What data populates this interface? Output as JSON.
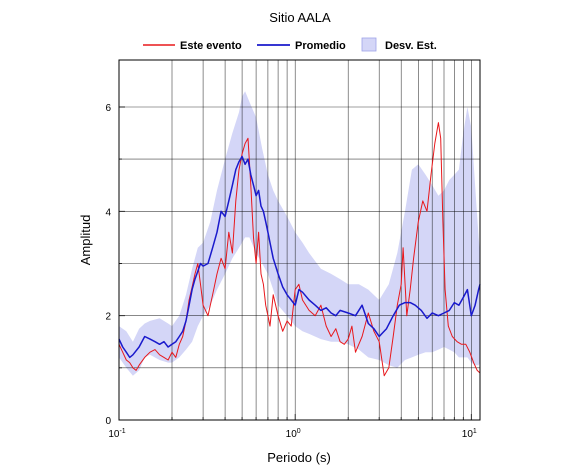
{
  "chart_data": {
    "type": "line",
    "title": "Sitio AALA",
    "xlabel": "Periodo (s)",
    "ylabel": "Amplitud",
    "x_scale": "log",
    "xlim": [
      0.1,
      11.2
    ],
    "ylim": [
      0,
      6.9
    ],
    "grid": "vertical at log decades and minor ticks; horizontal at every 1",
    "legend_position": "top",
    "x_ticks": [
      {
        "base": "10",
        "exp": "-1",
        "value": 0.1
      },
      {
        "base": "10",
        "exp": "0",
        "value": 1
      },
      {
        "base": "10",
        "exp": "1",
        "value": 10
      }
    ],
    "y_ticks": [
      "0",
      "2",
      "4",
      "6"
    ],
    "y_tick_values": [
      0,
      2,
      4,
      6
    ],
    "legend": [
      "Este evento",
      "Promedio",
      "Desv. Est."
    ],
    "colors": {
      "event": "#e8181c",
      "mean": "#1a1acc",
      "band": "#d4d6f7",
      "band_edge": "#9fa3e8"
    },
    "series": [
      {
        "name": "Este evento",
        "x": [
          0.1,
          0.105,
          0.11,
          0.115,
          0.12,
          0.125,
          0.13,
          0.14,
          0.15,
          0.16,
          0.17,
          0.18,
          0.19,
          0.2,
          0.21,
          0.22,
          0.23,
          0.24,
          0.25,
          0.26,
          0.27,
          0.28,
          0.29,
          0.3,
          0.32,
          0.34,
          0.36,
          0.38,
          0.4,
          0.42,
          0.44,
          0.46,
          0.48,
          0.5,
          0.52,
          0.54,
          0.56,
          0.58,
          0.6,
          0.62,
          0.64,
          0.66,
          0.68,
          0.7,
          0.72,
          0.75,
          0.8,
          0.85,
          0.9,
          0.95,
          1.0,
          1.05,
          1.1,
          1.2,
          1.3,
          1.4,
          1.5,
          1.6,
          1.7,
          1.8,
          1.9,
          2.0,
          2.1,
          2.2,
          2.4,
          2.6,
          2.8,
          3.0,
          3.2,
          3.4,
          3.6,
          3.8,
          4.0,
          4.1,
          4.3,
          4.5,
          4.7,
          5.0,
          5.3,
          5.6,
          5.9,
          6.2,
          6.5,
          6.7,
          6.9,
          7.1,
          7.4,
          7.8,
          8.3,
          8.8,
          9.3,
          9.8,
          10.3,
          10.8,
          11.2
        ],
        "y": [
          1.45,
          1.3,
          1.15,
          1.1,
          1.0,
          0.95,
          1.05,
          1.2,
          1.3,
          1.35,
          1.25,
          1.2,
          1.15,
          1.3,
          1.2,
          1.45,
          1.6,
          1.9,
          2.3,
          2.55,
          2.8,
          3.0,
          2.6,
          2.2,
          2.0,
          2.4,
          2.8,
          3.1,
          2.9,
          3.6,
          3.2,
          4.2,
          4.8,
          5.1,
          5.3,
          5.4,
          4.5,
          3.5,
          3.0,
          3.6,
          2.8,
          2.6,
          2.2,
          2.0,
          1.8,
          2.4,
          2.0,
          1.7,
          1.9,
          1.8,
          2.5,
          2.6,
          2.3,
          2.1,
          2.0,
          2.2,
          1.8,
          1.6,
          1.75,
          1.5,
          1.45,
          1.55,
          1.8,
          1.3,
          1.6,
          2.05,
          1.7,
          1.5,
          0.85,
          1.0,
          1.6,
          2.2,
          2.6,
          3.3,
          2.0,
          2.5,
          3.1,
          3.8,
          4.2,
          4.0,
          4.7,
          5.3,
          5.7,
          5.4,
          3.8,
          2.5,
          1.8,
          1.6,
          1.5,
          1.45,
          1.45,
          1.3,
          1.1,
          0.95,
          0.9
        ]
      },
      {
        "name": "Promedio",
        "x": [
          0.1,
          0.105,
          0.11,
          0.115,
          0.12,
          0.13,
          0.14,
          0.15,
          0.16,
          0.17,
          0.18,
          0.19,
          0.2,
          0.21,
          0.22,
          0.23,
          0.24,
          0.25,
          0.26,
          0.27,
          0.28,
          0.29,
          0.3,
          0.32,
          0.34,
          0.36,
          0.38,
          0.4,
          0.42,
          0.44,
          0.46,
          0.48,
          0.5,
          0.52,
          0.54,
          0.56,
          0.58,
          0.6,
          0.62,
          0.64,
          0.66,
          0.68,
          0.7,
          0.72,
          0.75,
          0.8,
          0.85,
          0.9,
          0.95,
          1.0,
          1.05,
          1.1,
          1.2,
          1.3,
          1.4,
          1.5,
          1.6,
          1.7,
          1.8,
          2.0,
          2.2,
          2.4,
          2.6,
          2.8,
          3.0,
          3.3,
          3.6,
          3.9,
          4.2,
          4.5,
          4.8,
          5.2,
          5.6,
          6.0,
          6.5,
          7.0,
          7.5,
          8.0,
          8.5,
          9.0,
          9.5,
          10.0,
          10.5,
          11.0,
          11.2
        ],
        "y": [
          1.55,
          1.4,
          1.3,
          1.2,
          1.25,
          1.4,
          1.6,
          1.55,
          1.5,
          1.45,
          1.5,
          1.4,
          1.45,
          1.5,
          1.6,
          1.7,
          1.9,
          2.2,
          2.5,
          2.7,
          2.85,
          3.0,
          2.95,
          3.0,
          3.3,
          3.6,
          4.0,
          3.9,
          4.2,
          4.5,
          4.8,
          4.95,
          5.05,
          4.9,
          5.0,
          4.7,
          4.5,
          4.3,
          4.4,
          4.1,
          4.0,
          3.8,
          3.6,
          3.4,
          3.1,
          2.8,
          2.55,
          2.4,
          2.3,
          2.2,
          2.5,
          2.45,
          2.3,
          2.2,
          2.1,
          2.15,
          2.05,
          2.0,
          2.1,
          2.05,
          2.0,
          2.2,
          1.85,
          1.75,
          1.6,
          1.75,
          2.0,
          2.2,
          2.25,
          2.25,
          2.2,
          2.1,
          1.95,
          2.05,
          2.0,
          2.05,
          2.1,
          2.25,
          2.2,
          2.35,
          2.5,
          2.0,
          2.2,
          2.5,
          2.6
        ]
      },
      {
        "name": "Desv. Est.",
        "x": [
          0.1,
          0.11,
          0.12,
          0.13,
          0.14,
          0.15,
          0.17,
          0.19,
          0.2,
          0.22,
          0.24,
          0.26,
          0.28,
          0.3,
          0.33,
          0.36,
          0.4,
          0.44,
          0.48,
          0.5,
          0.52,
          0.55,
          0.6,
          0.65,
          0.7,
          0.75,
          0.8,
          0.9,
          1.0,
          1.1,
          1.2,
          1.4,
          1.6,
          1.8,
          2.0,
          2.3,
          2.6,
          3.0,
          3.4,
          3.8,
          4.2,
          4.6,
          5.0,
          5.5,
          6.0,
          6.5,
          7.0,
          7.5,
          8.0,
          8.5,
          9.0,
          9.5,
          10.0,
          10.5,
          11.0,
          11.2
        ],
        "upper": [
          1.8,
          1.7,
          1.5,
          1.75,
          1.85,
          1.9,
          1.95,
          1.85,
          1.8,
          2.0,
          2.4,
          2.9,
          3.3,
          3.4,
          3.8,
          4.4,
          5.0,
          5.5,
          5.9,
          6.2,
          6.3,
          6.1,
          5.8,
          5.2,
          4.7,
          4.4,
          4.2,
          3.9,
          3.6,
          3.4,
          3.2,
          2.9,
          2.8,
          2.7,
          2.6,
          2.6,
          2.5,
          2.3,
          2.6,
          3.2,
          4.0,
          4.8,
          4.9,
          4.7,
          4.5,
          4.3,
          4.4,
          4.6,
          4.7,
          4.8,
          5.5,
          6.0,
          5.6,
          4.5,
          3.5,
          3.2
        ],
        "lower": [
          1.2,
          1.0,
          0.85,
          0.95,
          1.2,
          1.25,
          1.15,
          1.1,
          1.1,
          1.2,
          1.35,
          1.5,
          1.8,
          2.0,
          2.2,
          2.5,
          2.8,
          3.1,
          3.3,
          3.4,
          3.5,
          3.5,
          3.2,
          3.0,
          2.8,
          2.5,
          2.2,
          2.0,
          1.8,
          1.7,
          1.65,
          1.55,
          1.5,
          1.5,
          1.45,
          1.35,
          1.2,
          1.15,
          1.05,
          1.0,
          1.15,
          1.2,
          1.25,
          1.3,
          1.3,
          1.35,
          1.4,
          1.35,
          1.3,
          1.2,
          1.2,
          1.2,
          1.1,
          1.05,
          1.05,
          1.1
        ]
      }
    ]
  }
}
